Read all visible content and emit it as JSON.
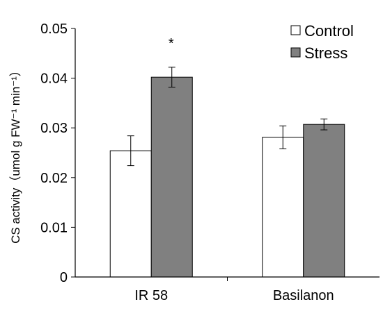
{
  "chart_data": {
    "type": "bar",
    "ylabel": "CS activity（umol g FW⁻¹ min⁻¹）",
    "ylim": [
      0,
      0.05
    ],
    "yticks": [
      {
        "value": 0,
        "label": "0"
      },
      {
        "value": 0.01,
        "label": "0.01"
      },
      {
        "value": 0.02,
        "label": "0.02"
      },
      {
        "value": 0.03,
        "label": "0.03"
      },
      {
        "value": 0.04,
        "label": "0.04"
      },
      {
        "value": 0.05,
        "label": "0.05"
      }
    ],
    "categories": [
      "IR 58",
      "Basilanon"
    ],
    "series": [
      {
        "name": "Control",
        "values": [
          0.0254,
          0.0281
        ],
        "errors": [
          0.003,
          0.0023
        ],
        "color": "#ffffff"
      },
      {
        "name": "Stress",
        "values": [
          0.0402,
          0.0307
        ],
        "errors": [
          0.002,
          0.0011
        ],
        "color": "#808080"
      }
    ],
    "annotations": [
      {
        "text": "*",
        "category": 0,
        "series": 1
      }
    ],
    "legend_position": "top-right",
    "grid": false
  }
}
